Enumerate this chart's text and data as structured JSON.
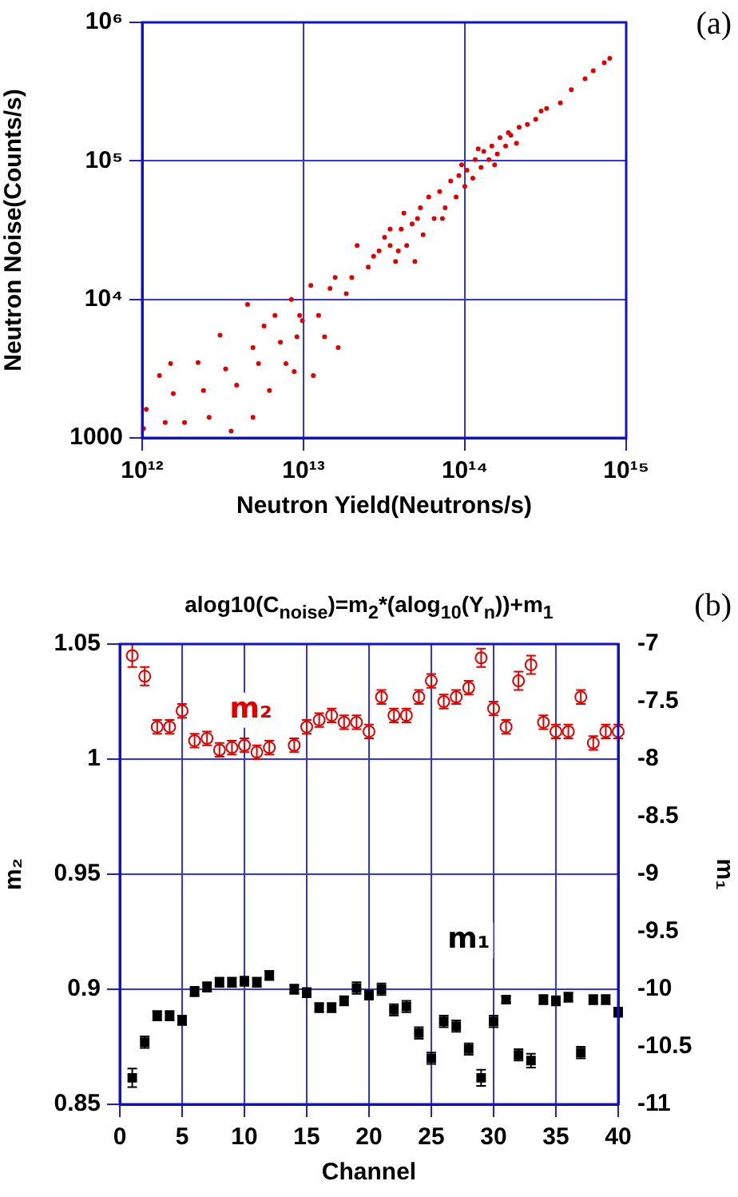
{
  "chart_data": [
    {
      "type": "scatter",
      "xlabel": "Neutron Yield(Neutrons/s)",
      "ylabel": "Neutron Noise(Counts/s)",
      "annotations": [
        "(a)"
      ],
      "log": "xy",
      "grid": true,
      "marker": "circle",
      "xlim": [
        1000000000000.0,
        1000000000000000.0
      ],
      "ylim": [
        1000,
        1000000.0
      ],
      "xticks": [
        {
          "value": 1000000000000.0,
          "label": "10¹²"
        },
        {
          "value": 10000000000000.0,
          "label": "10¹³"
        },
        {
          "value": 100000000000000.0,
          "label": "10¹⁴"
        },
        {
          "value": 1000000000000000.0,
          "label": "10¹⁵"
        }
      ],
      "yticks": [
        1000,
        {
          "value": 10000.0,
          "label": "10⁴"
        },
        {
          "value": 100000.0,
          "label": "10⁵"
        },
        {
          "value": 1000000.0,
          "label": "10⁶"
        }
      ],
      "series": [
        {
          "color": "#e00000",
          "x": [
            1060000000000.0,
            1020000000000.0,
            1280000000000.0,
            1390000000000.0,
            1500000000000.0,
            1560000000000.0,
            1830000000000.0,
            2220000000000.0,
            2400000000000.0,
            2600000000000.0,
            3040000000000.0,
            3290000000000.0,
            3560000000000.0,
            3850000000000.0,
            4500000000000.0,
            4860000000000.0,
            4860000000000.0,
            5260000000000.0,
            5690000000000.0,
            6150000000000.0,
            6650000000000.0,
            7190000000000.0,
            7780000000000.0,
            8410000000000.0,
            8750000000000.0,
            9100000000000.0,
            9460000000000.0,
            9840000000000.0,
            11100000000000.0,
            11500000000000.0,
            12400000000000.0,
            13500000000000.0,
            14600000000000.0,
            16400000000000.0,
            18400000000000.0,
            21500000000000.0,
            19900000000000.0,
            25200000000000.0,
            29400000000000.0,
            31800000000000.0,
            34400000000000.0,
            37200000000000.0,
            40300000000000.0,
            41900000000000.0,
            43600000000000.0,
            47100000000000.0,
            49000000000000.0,
            53000000000000.0,
            55100000000000.0,
            59700000000000.0,
            64500000000000.0,
            69800000000000.0,
            75500000000000.0,
            81700000000000.0,
            88300000000000.0,
            91800000000000.0,
            100000000000000.0,
            103000000000000.0,
            112000000000000.0,
            116000000000000.0,
            126000000000000.0,
            131000000000000.0,
            141000000000000.0,
            147000000000000.0,
            159000000000000.0,
            165000000000000.0,
            179000000000000.0,
            193000000000000.0,
            209000000000000.0,
            217000000000000.0,
            244000000000000.0,
            275000000000000.0,
            297000000000000.0,
            321000000000000.0,
            391000000000000.0,
            457000000000000.0,
            556000000000000.0,
            625000000000000.0,
            731000000000000.0,
            791000000000000.0,
            34400000000000.0,
            38700000000000.0,
            50900000000000.0,
            72600000000000.0,
            95500000000000.0,
            121000000000000.0,
            153000000000000.0,
            186000000000000.0,
            27200000000000.0,
            15700000000000.0
          ],
          "values": [
            1610,
            1170,
            2820,
            1290,
            3440,
            2090,
            1290,
            3500,
            2200,
            1410,
            5520,
            3140,
            1120,
            2400,
            9180,
            4490,
            1410,
            3440,
            6430,
            2200,
            7670,
            4910,
            3440,
            10000,
            3010,
            5370,
            7670,
            7020,
            12600,
            2820,
            7670,
            5370,
            12000,
            4490,
            11000,
            24500,
            14400,
            17100,
            22400,
            28100,
            24500,
            18800,
            32100,
            41900,
            24500,
            35100,
            18800,
            45800,
            29300,
            54800,
            38400,
            60000,
            45800,
            71600,
            54800,
            78300,
            65500,
            85700,
            75000,
            102000,
            89600,
            117000,
            102000,
            128000,
            112000,
            147000,
            128000,
            153000,
            134000,
            175000,
            183000,
            200000,
            229000,
            239000,
            262000,
            327000,
            392000,
            448000,
            512000,
            550000,
            32100,
            22400,
            38400,
            38400,
            93800,
            122000,
            93800,
            160000,
            20500,
            14400
          ]
        }
      ]
    },
    {
      "type": "scatter",
      "title": "alog10(C$_{noise}$)=m$_{2}$*(alog$_{10}$(Y$_{n}$))+m$_{1}$",
      "xlabel": "Channel",
      "ylabel": "m₂",
      "y2label": "m₁",
      "annotations": [
        "(b)"
      ],
      "grid": true,
      "xlim": [
        0,
        40
      ],
      "xticks": [
        0,
        5,
        10,
        15,
        20,
        25,
        30,
        35,
        40
      ],
      "ylim": [
        0.85,
        1.05
      ],
      "yticks": [
        0.85,
        0.9,
        0.95,
        1,
        1.05
      ],
      "y2lim": [
        -11,
        -7
      ],
      "y2ticks": [
        -11,
        -10.5,
        -10,
        -9.5,
        -9,
        -8.5,
        -8,
        -7.5,
        -7
      ],
      "x": [
        1,
        2,
        3,
        4,
        5,
        6,
        7,
        8,
        9,
        10,
        11,
        12,
        13,
        14,
        15,
        16,
        17,
        18,
        19,
        20,
        21,
        22,
        23,
        24,
        25,
        26,
        27,
        28,
        29,
        30,
        31,
        32,
        33,
        34,
        35,
        36,
        37,
        38,
        39,
        40
      ],
      "series": [
        {
          "name": "m₂",
          "color": "#e00000",
          "marker": "circle",
          "values": [
            1.045,
            1.036,
            1.014,
            1.014,
            1.021,
            1.008,
            1.009,
            1.004,
            1.005,
            1.006,
            1.003,
            1.005,
            null,
            1.006,
            1.014,
            1.017,
            1.019,
            1.016,
            1.016,
            1.012,
            1.027,
            1.019,
            1.019,
            1.027,
            1.034,
            1.025,
            1.027,
            1.031,
            1.044,
            1.022,
            1.014,
            1.034,
            1.041,
            1.016,
            1.012,
            1.012,
            1.027,
            1.007,
            1.012,
            1.012
          ],
          "errors": [
            0.005,
            0.004,
            0.003,
            0.003,
            0.003,
            0.003,
            0.003,
            0.003,
            0.003,
            0.003,
            0.003,
            0.003,
            null,
            0.003,
            0.003,
            0.003,
            0.003,
            0.003,
            0.003,
            0.003,
            0.003,
            0.003,
            0.003,
            0.003,
            0.003,
            0.003,
            0.003,
            0.003,
            0.004,
            0.003,
            0.003,
            0.004,
            0.004,
            0.003,
            0.003,
            0.003,
            0.003,
            0.003,
            0.003,
            0.003
          ]
        },
        {
          "name": "m₁",
          "color": "#000000",
          "marker": "square",
          "axis": "y2",
          "values": [
            -10.77,
            -10.46,
            -10.23,
            -10.23,
            -10.27,
            -10.02,
            -9.98,
            -9.94,
            -9.94,
            -9.93,
            -9.94,
            -9.88,
            null,
            -10.0,
            -10.03,
            -10.16,
            -10.16,
            -10.1,
            -9.99,
            -10.05,
            -10.0,
            -10.18,
            -10.15,
            -10.38,
            -10.6,
            -10.28,
            -10.32,
            -10.52,
            -10.77,
            -10.28,
            -10.09,
            -10.57,
            -10.62,
            -10.09,
            -10.1,
            -10.07,
            -10.55,
            -10.09,
            -10.09,
            -10.2
          ],
          "errors": [
            0.08,
            0.05,
            0.04,
            0.04,
            0.04,
            0.04,
            0.04,
            0.04,
            0.04,
            0.04,
            0.04,
            0.04,
            null,
            0.04,
            0.04,
            0.04,
            0.04,
            0.04,
            0.05,
            0.04,
            0.05,
            0.05,
            0.05,
            0.05,
            0.05,
            0.05,
            0.05,
            0.05,
            0.07,
            0.05,
            0.03,
            0.05,
            0.06,
            0.04,
            0.04,
            0.04,
            0.05,
            0.04,
            0.04,
            0.04
          ]
        }
      ]
    }
  ]
}
